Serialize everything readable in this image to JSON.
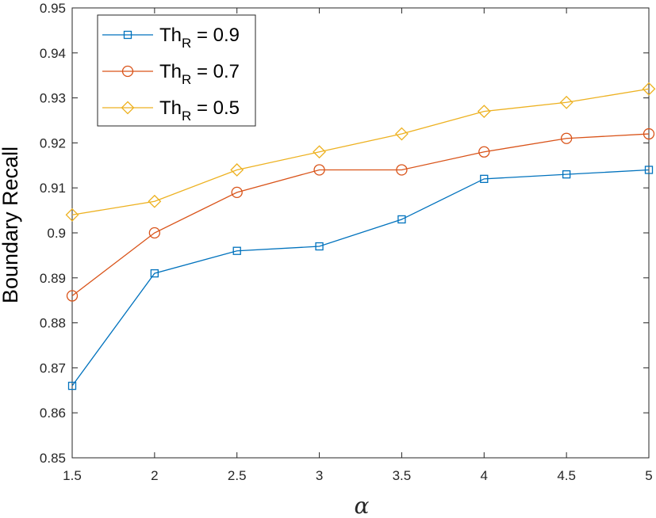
{
  "chart_data": {
    "type": "line",
    "title": "",
    "xlabel": "α",
    "ylabel": "Boundary Recall",
    "x": [
      1.5,
      2,
      2.5,
      3,
      3.5,
      4,
      4.5,
      5
    ],
    "xlim": [
      1.5,
      5
    ],
    "ylim": [
      0.85,
      0.95
    ],
    "xticks": [
      "1.5",
      "2",
      "2.5",
      "3",
      "3.5",
      "4",
      "4.5",
      "5"
    ],
    "yticks": [
      "0.85",
      "0.86",
      "0.87",
      "0.88",
      "0.89",
      "0.9",
      "0.91",
      "0.92",
      "0.93",
      "0.94",
      "0.95"
    ],
    "grid": false,
    "legend_position": "top-left",
    "series": [
      {
        "name": "Th_R = 0.9",
        "label_main": "Th",
        "label_sub": "R",
        "label_rest": " = 0.9",
        "marker": "square",
        "color": "#0072BD",
        "values": [
          0.866,
          0.891,
          0.896,
          0.897,
          0.903,
          0.912,
          0.913,
          0.914
        ]
      },
      {
        "name": "Th_R = 0.7",
        "label_main": "Th",
        "label_sub": "R",
        "label_rest": " = 0.7",
        "marker": "circle",
        "color": "#D95319",
        "values": [
          0.886,
          0.9,
          0.909,
          0.914,
          0.914,
          0.918,
          0.921,
          0.922
        ]
      },
      {
        "name": "Th_R = 0.5",
        "label_main": "Th",
        "label_sub": "R",
        "label_rest": " = 0.5",
        "marker": "diamond",
        "color": "#EDB120",
        "values": [
          0.904,
          0.907,
          0.914,
          0.918,
          0.922,
          0.927,
          0.929,
          0.932
        ]
      }
    ]
  }
}
